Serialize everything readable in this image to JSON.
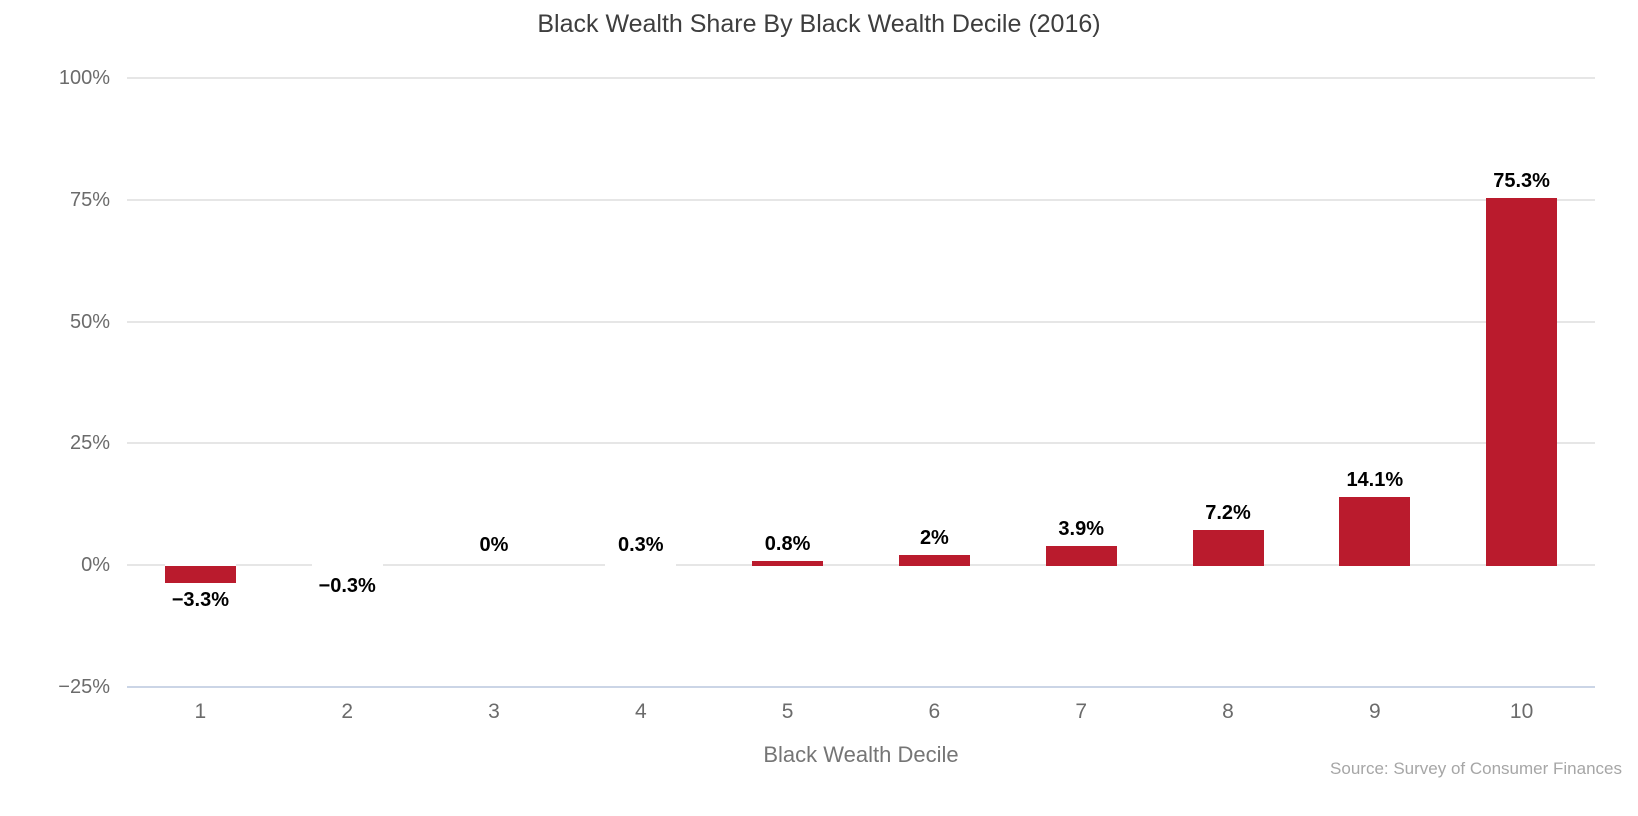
{
  "chart_data": {
    "type": "bar",
    "title": "Black Wealth Share By Black Wealth Decile (2016)",
    "xlabel": "Black Wealth Decile",
    "ylabel": "",
    "source_note": "Source: Survey of Consumer Finances",
    "categories": [
      "1",
      "2",
      "3",
      "4",
      "5",
      "6",
      "7",
      "8",
      "9",
      "10"
    ],
    "values": [
      -3.3,
      -0.3,
      0,
      0.3,
      0.8,
      2,
      3.9,
      7.2,
      14.1,
      75.3
    ],
    "value_labels": [
      "−3.3%",
      "−0.3%",
      "0%",
      "0.3%",
      "0.8%",
      "2%",
      "3.9%",
      "7.2%",
      "14.1%",
      "75.3%"
    ],
    "y_ticks": [
      {
        "label": "100%",
        "value": 100
      },
      {
        "label": "75%",
        "value": 75
      },
      {
        "label": "50%",
        "value": 50
      },
      {
        "label": "25%",
        "value": 25
      },
      {
        "label": "0%",
        "value": 0
      },
      {
        "label": "−25%",
        "value": -25
      }
    ],
    "ylim": [
      -25,
      100
    ],
    "grid": true,
    "legend": "none",
    "colors": {
      "bar": "#BA1B2D",
      "gridline": "#E6E6E6",
      "baseline": "#CBD5E6",
      "title_text": "#3E3E3E",
      "tick_text": "#6B6B6B",
      "axis_title_text": "#757575",
      "source_text": "#A6A6A6",
      "value_label_text": "#000000"
    }
  }
}
